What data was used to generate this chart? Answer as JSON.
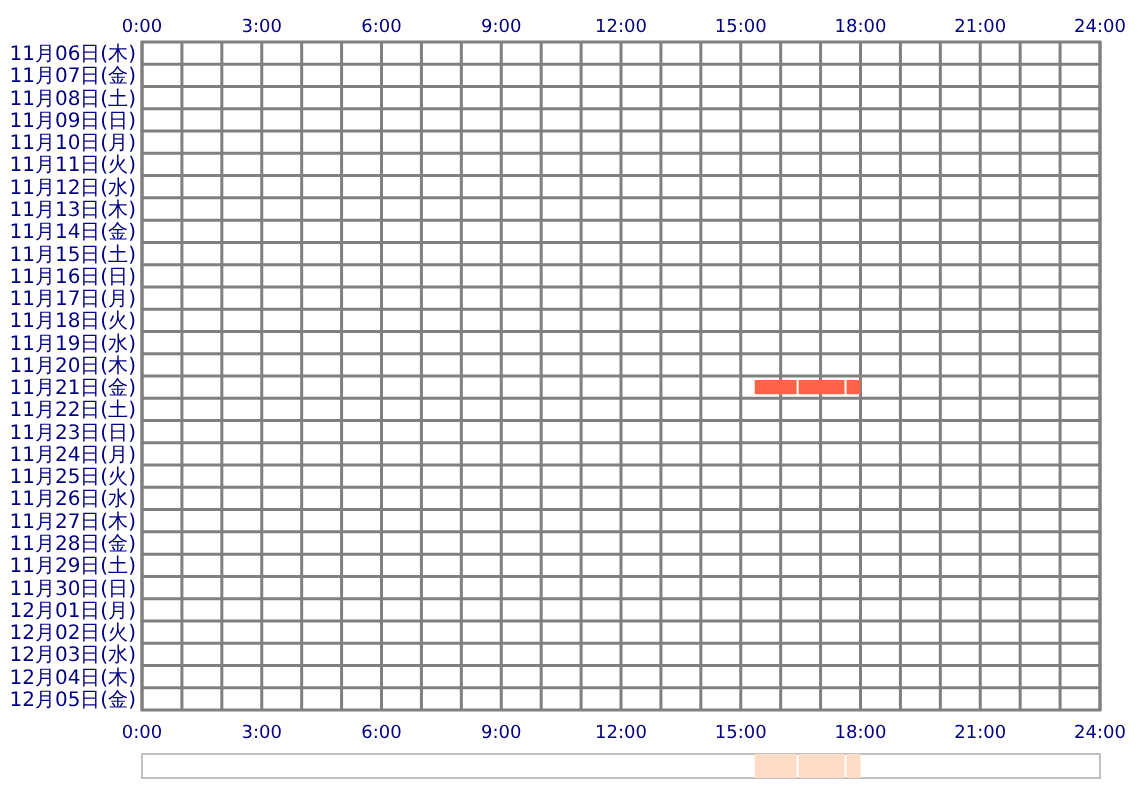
{
  "chart_data": [
    {
      "type": "bar",
      "orientation": "horizontal",
      "grid": true,
      "categories": [
        "11月06日(木)",
        "11月07日(金)",
        "11月08日(土)",
        "11月09日(日)",
        "11月10日(月)",
        "11月11日(火)",
        "11月12日(水)",
        "11月13日(木)",
        "11月14日(金)",
        "11月15日(土)",
        "11月16日(日)",
        "11月17日(月)",
        "11月18日(火)",
        "11月19日(水)",
        "11月20日(木)",
        "11月21日(金)",
        "11月22日(土)",
        "11月23日(日)",
        "11月24日(月)",
        "11月25日(火)",
        "11月26日(水)",
        "11月27日(木)",
        "11月28日(金)",
        "11月29日(土)",
        "11月30日(日)",
        "12月01日(月)",
        "12月02日(火)",
        "12月03日(水)",
        "12月04日(木)",
        "12月05日(金)"
      ],
      "series": [
        {
          "color": "#ff6347",
          "base": [
            null,
            null,
            null,
            null,
            null,
            null,
            null,
            null,
            null,
            null,
            null,
            null,
            null,
            null,
            null,
            15.35,
            null,
            null,
            null,
            null,
            null,
            null,
            null,
            null,
            null,
            null,
            null,
            null,
            null,
            null
          ],
          "values": [
            null,
            null,
            null,
            null,
            null,
            null,
            null,
            null,
            null,
            null,
            null,
            null,
            null,
            null,
            null,
            1.05,
            null,
            null,
            null,
            null,
            null,
            null,
            null,
            null,
            null,
            null,
            null,
            null,
            null,
            null
          ]
        },
        {
          "color": "#ff6347",
          "base": [
            null,
            null,
            null,
            null,
            null,
            null,
            null,
            null,
            null,
            null,
            null,
            null,
            null,
            null,
            null,
            16.45,
            null,
            null,
            null,
            null,
            null,
            null,
            null,
            null,
            null,
            null,
            null,
            null,
            null,
            null
          ],
          "values": [
            null,
            null,
            null,
            null,
            null,
            null,
            null,
            null,
            null,
            null,
            null,
            null,
            null,
            null,
            null,
            1.15,
            null,
            null,
            null,
            null,
            null,
            null,
            null,
            null,
            null,
            null,
            null,
            null,
            null,
            null
          ]
        },
        {
          "color": "#ff6347",
          "base": [
            null,
            null,
            null,
            null,
            null,
            null,
            null,
            null,
            null,
            null,
            null,
            null,
            null,
            null,
            null,
            17.65,
            null,
            null,
            null,
            null,
            null,
            null,
            null,
            null,
            null,
            null,
            null,
            null,
            null,
            null
          ],
          "values": [
            null,
            null,
            null,
            null,
            null,
            null,
            null,
            null,
            null,
            null,
            null,
            null,
            null,
            null,
            null,
            0.35,
            null,
            null,
            null,
            null,
            null,
            null,
            null,
            null,
            null,
            null,
            null,
            null,
            null,
            null
          ]
        }
      ],
      "xlim": [
        0,
        24
      ],
      "xticks": [
        {
          "value": 0,
          "label": "0:00"
        },
        {
          "value": 1,
          "label": null
        },
        {
          "value": 2,
          "label": null
        },
        {
          "value": 3,
          "label": "3:00"
        },
        {
          "value": 4,
          "label": null
        },
        {
          "value": 5,
          "label": null
        },
        {
          "value": 6,
          "label": "6:00"
        },
        {
          "value": 7,
          "label": null
        },
        {
          "value": 8,
          "label": null
        },
        {
          "value": 9,
          "label": "9:00"
        },
        {
          "value": 10,
          "label": null
        },
        {
          "value": 11,
          "label": null
        },
        {
          "value": 12,
          "label": "12:00"
        },
        {
          "value": 13,
          "label": null
        },
        {
          "value": 14,
          "label": null
        },
        {
          "value": 15,
          "label": "15:00"
        },
        {
          "value": 16,
          "label": null
        },
        {
          "value": 17,
          "label": null
        },
        {
          "value": 18,
          "label": "18:00"
        },
        {
          "value": 19,
          "label": null
        },
        {
          "value": 20,
          "label": null
        },
        {
          "value": 21,
          "label": "21:00"
        },
        {
          "value": 22,
          "label": null
        },
        {
          "value": 23,
          "label": null
        },
        {
          "value": 24,
          "label": "24:00"
        }
      ],
      "x2lim": [
        0,
        24
      ],
      "x2ticks": [
        {
          "value": 0,
          "label": "0:00"
        },
        {
          "value": 3,
          "label": "3:00"
        },
        {
          "value": 6,
          "label": "6:00"
        },
        {
          "value": 9,
          "label": "9:00"
        },
        {
          "value": 12,
          "label": "12:00"
        },
        {
          "value": 15,
          "label": "15:00"
        },
        {
          "value": 18,
          "label": "18:00"
        },
        {
          "value": 21,
          "label": "21:00"
        },
        {
          "value": 24,
          "label": "24:00"
        }
      ]
    },
    {
      "type": "bar",
      "orientation": "horizontal",
      "categories": [
        null
      ],
      "series": [
        {
          "color": "#ffdcc6",
          "base": [
            15.35
          ],
          "values": [
            1.05
          ]
        },
        {
          "color": "#ffdcc6",
          "base": [
            16.45
          ],
          "values": [
            1.15
          ]
        },
        {
          "color": "#ffdcc6",
          "base": [
            17.65
          ],
          "values": [
            0.35
          ]
        }
      ],
      "xlim": [
        0,
        24
      ]
    }
  ]
}
